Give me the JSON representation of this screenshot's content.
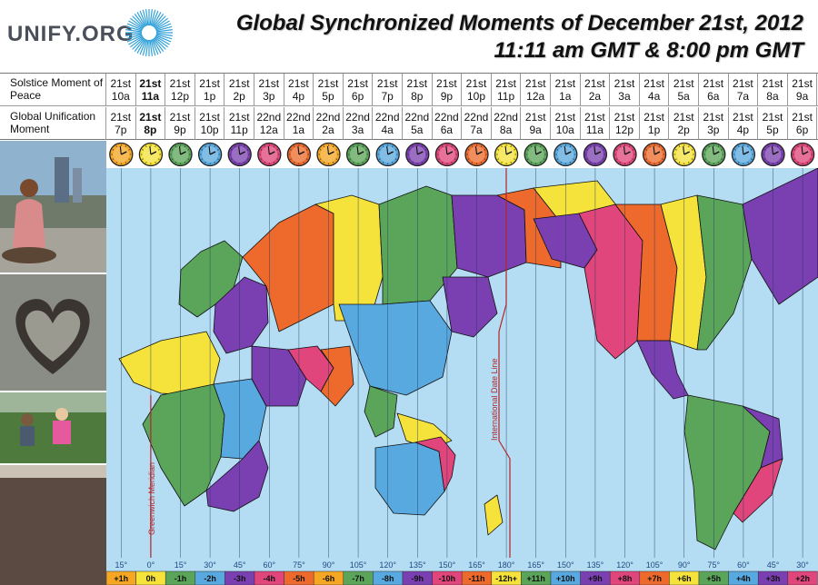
{
  "header": {
    "logo_text": "UNIFY.ORG",
    "title_line1": "Global Synchronized Moments of December 21st, 2012",
    "title_line2": "11:11 am GMT &  8:00 pm GMT"
  },
  "table": {
    "row_labels": [
      "Solstice Moment of Peace",
      "Global Unification Moment"
    ],
    "columns": [
      {
        "solstice_day": "21st",
        "solstice_time": "10a",
        "unify_day": "21st",
        "unify_time": "7p",
        "color": "#f5a623"
      },
      {
        "solstice_day": "21st",
        "solstice_time": "11a",
        "unify_day": "21st",
        "unify_time": "8p",
        "color": "#f5e23a",
        "highlight": true
      },
      {
        "solstice_day": "21st",
        "solstice_time": "12p",
        "unify_day": "21st",
        "unify_time": "9p",
        "color": "#5aa55a"
      },
      {
        "solstice_day": "21st",
        "solstice_time": "1p",
        "unify_day": "21st",
        "unify_time": "10p",
        "color": "#58a9e0"
      },
      {
        "solstice_day": "21st",
        "solstice_time": "2p",
        "unify_day": "21st",
        "unify_time": "11p",
        "color": "#7a3fb0"
      },
      {
        "solstice_day": "21st",
        "solstice_time": "3p",
        "unify_day": "22nd",
        "unify_time": "12a",
        "color": "#e0457b"
      },
      {
        "solstice_day": "21st",
        "solstice_time": "4p",
        "unify_day": "22nd",
        "unify_time": "1a",
        "color": "#ee6a2c"
      },
      {
        "solstice_day": "21st",
        "solstice_time": "5p",
        "unify_day": "22nd",
        "unify_time": "2a",
        "color": "#f5a623"
      },
      {
        "solstice_day": "21st",
        "solstice_time": "6p",
        "unify_day": "22nd",
        "unify_time": "3a",
        "color": "#5aa55a"
      },
      {
        "solstice_day": "21st",
        "solstice_time": "7p",
        "unify_day": "22nd",
        "unify_time": "4a",
        "color": "#58a9e0"
      },
      {
        "solstice_day": "21st",
        "solstice_time": "8p",
        "unify_day": "22nd",
        "unify_time": "5a",
        "color": "#7a3fb0"
      },
      {
        "solstice_day": "21st",
        "solstice_time": "9p",
        "unify_day": "22nd",
        "unify_time": "6a",
        "color": "#e0457b"
      },
      {
        "solstice_day": "21st",
        "solstice_time": "10p",
        "unify_day": "22nd",
        "unify_time": "7a",
        "color": "#ee6a2c"
      },
      {
        "solstice_day": "21st",
        "solstice_time": "11p",
        "unify_day": "22nd",
        "unify_time": "8a",
        "color": "#f5e23a"
      },
      {
        "solstice_day": "21st",
        "solstice_time": "12a",
        "unify_day": "21st",
        "unify_time": "9a",
        "color": "#5aa55a"
      },
      {
        "solstice_day": "21st",
        "solstice_time": "1a",
        "unify_day": "21st",
        "unify_time": "10a",
        "color": "#58a9e0"
      },
      {
        "solstice_day": "21st",
        "solstice_time": "2a",
        "unify_day": "21st",
        "unify_time": "11a",
        "color": "#7a3fb0"
      },
      {
        "solstice_day": "21st",
        "solstice_time": "3a",
        "unify_day": "21st",
        "unify_time": "12p",
        "color": "#e0457b"
      },
      {
        "solstice_day": "21st",
        "solstice_time": "4a",
        "unify_day": "21st",
        "unify_time": "1p",
        "color": "#ee6a2c"
      },
      {
        "solstice_day": "21st",
        "solstice_time": "5a",
        "unify_day": "21st",
        "unify_time": "2p",
        "color": "#f5e23a"
      },
      {
        "solstice_day": "21st",
        "solstice_time": "6a",
        "unify_day": "21st",
        "unify_time": "3p",
        "color": "#5aa55a"
      },
      {
        "solstice_day": "21st",
        "solstice_time": "7a",
        "unify_day": "21st",
        "unify_time": "4p",
        "color": "#58a9e0"
      },
      {
        "solstice_day": "21st",
        "solstice_time": "8a",
        "unify_day": "21st",
        "unify_time": "5p",
        "color": "#7a3fb0"
      },
      {
        "solstice_day": "21st",
        "solstice_time": "9a",
        "unify_day": "21st",
        "unify_time": "6p",
        "color": "#e0457b"
      }
    ]
  },
  "map": {
    "labels": {
      "greenwich": "Greenwich Meridian",
      "date_line": "International Date Line"
    },
    "degrees": [
      "15°",
      "0°",
      "15°",
      "30°",
      "45°",
      "60°",
      "75°",
      "90°",
      "105°",
      "120°",
      "135°",
      "150°",
      "165°",
      "180°",
      "165°",
      "150°",
      "135°",
      "120°",
      "105°",
      "90°",
      "75°",
      "60°",
      "45°",
      "30°"
    ],
    "offsets": [
      "+1h",
      "0h",
      "-1h",
      "-2h",
      "-3h",
      "-4h",
      "-5h",
      "-6h",
      "-7h",
      "-8h",
      "-9h",
      "-10h",
      "-11h",
      "-12h+",
      "+11h",
      "+10h",
      "+9h",
      "+8h",
      "+7h",
      "+6h",
      "+5h",
      "+4h",
      "+3h",
      "+2h"
    ],
    "colors": {
      "ocean": "#b4dcf2",
      "purple": "#7a3fb0",
      "pink": "#e0457b",
      "orange": "#ee6a2c",
      "yellow": "#f5e23a",
      "green": "#5aa55a",
      "blue": "#58a9e0",
      "line_red": "#b3262a"
    }
  }
}
